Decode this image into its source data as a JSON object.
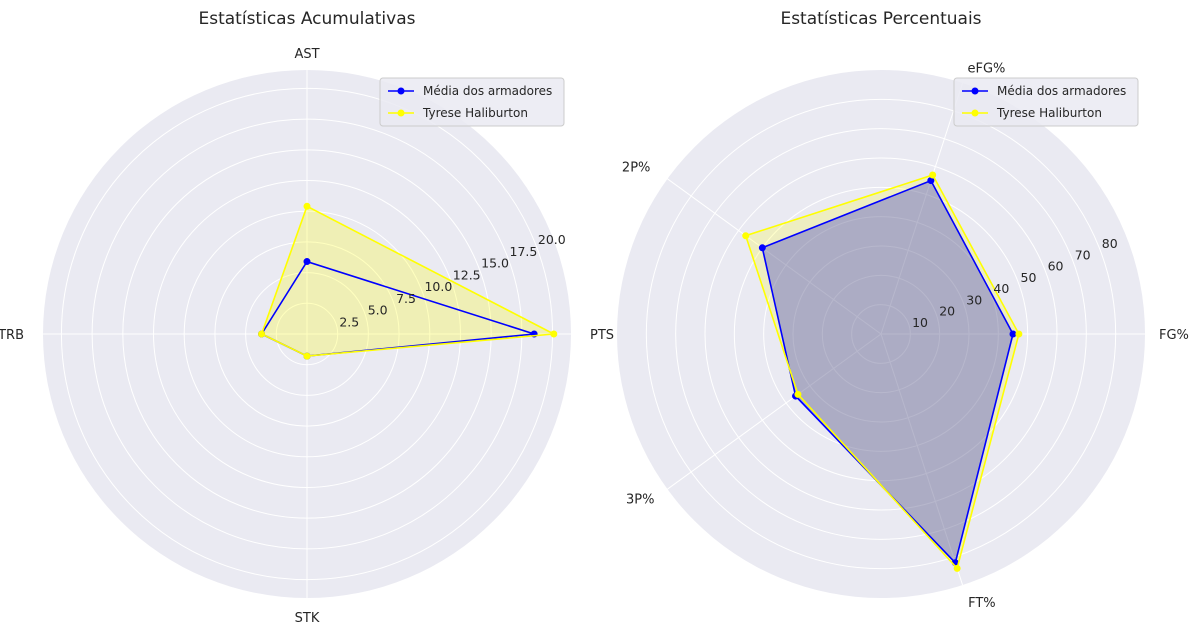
{
  "chart_data": [
    {
      "type": "radar",
      "title": "Estatísticas Acumulativas",
      "categories": [
        "PTS",
        "AST",
        "TRB",
        "STK"
      ],
      "rlim": [
        0,
        21.5
      ],
      "rticks": [
        2.5,
        5.0,
        7.5,
        10.0,
        12.5,
        15.0,
        17.5,
        20.0
      ],
      "rtick_labels": [
        "2.5",
        "5.0",
        "7.5",
        "10.0",
        "12.5",
        "15.0",
        "17.5",
        "20.0"
      ],
      "grid": true,
      "legend_position": "upper right",
      "series": [
        {
          "name": "Média dos armadores",
          "color": "#0000ff",
          "fill": false,
          "values": [
            18.5,
            5.9,
            3.7,
            1.8
          ]
        },
        {
          "name": "Tyrese Haliburton",
          "color": "#ffff00",
          "fill": true,
          "fill_opacity": 0.25,
          "values": [
            20.1,
            10.4,
            3.7,
            1.8
          ]
        }
      ]
    },
    {
      "type": "radar",
      "title": "Estatísticas Percentuais",
      "categories": [
        "FG%",
        "eFG%",
        "2P%",
        "3P%",
        "FT%"
      ],
      "rlim": [
        0,
        90
      ],
      "rticks": [
        10,
        20,
        30,
        40,
        50,
        60,
        70,
        80
      ],
      "rtick_labels": [
        "10",
        "20",
        "30",
        "40",
        "50",
        "60",
        "70",
        "80"
      ],
      "grid": true,
      "legend_position": "upper right",
      "series": [
        {
          "name": "Média dos armadores",
          "color": "#0000ff",
          "fill": true,
          "fill_opacity": 0.35,
          "values": [
            45,
            55,
            50,
            36,
            82
          ]
        },
        {
          "name": "Tyrese Haliburton",
          "color": "#ffff00",
          "fill": true,
          "fill_opacity": 0.2,
          "values": [
            47,
            57,
            57,
            35,
            84
          ]
        }
      ]
    }
  ]
}
